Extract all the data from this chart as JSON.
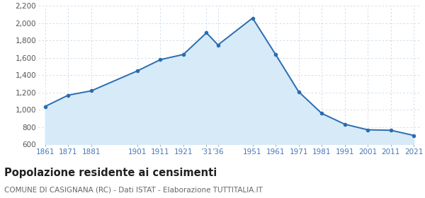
{
  "years": [
    1861,
    1871,
    1881,
    1901,
    1911,
    1921,
    1931,
    1936,
    1951,
    1961,
    1971,
    1981,
    1991,
    2001,
    2011,
    2021
  ],
  "population": [
    1040,
    1170,
    1220,
    1450,
    1580,
    1640,
    1890,
    1750,
    2060,
    1640,
    1210,
    960,
    835,
    770,
    765,
    705
  ],
  "ylim": [
    600,
    2200
  ],
  "yticks": [
    600,
    800,
    1000,
    1200,
    1400,
    1600,
    1800,
    2000,
    2200
  ],
  "line_color": "#2b6cb0",
  "fill_color": "#d6eaf8",
  "marker_color": "#2b6cb0",
  "bg_color": "#ffffff",
  "grid_color": "#c8d8e8",
  "x_label_color": "#4477bb",
  "y_label_color": "#555555",
  "title": "Popolazione residente ai censimenti",
  "subtitle": "COMUNE DI CASIGNANA (RC) - Dati ISTAT - Elaborazione TUTTITALIA.IT",
  "title_fontsize": 10.5,
  "subtitle_fontsize": 7.5,
  "xtick_positions": [
    1861,
    1871,
    1881,
    1901,
    1911,
    1921,
    1931,
    1936,
    1951,
    1961,
    1971,
    1981,
    1991,
    2001,
    2011,
    2021
  ],
  "xtick_labels": [
    "1861",
    "1871",
    "1881",
    "1901",
    "1911",
    "1921",
    "’31",
    "’36",
    "1951",
    "1961",
    "1971",
    "1981",
    "1991",
    "2001",
    "2011",
    "2021"
  ]
}
